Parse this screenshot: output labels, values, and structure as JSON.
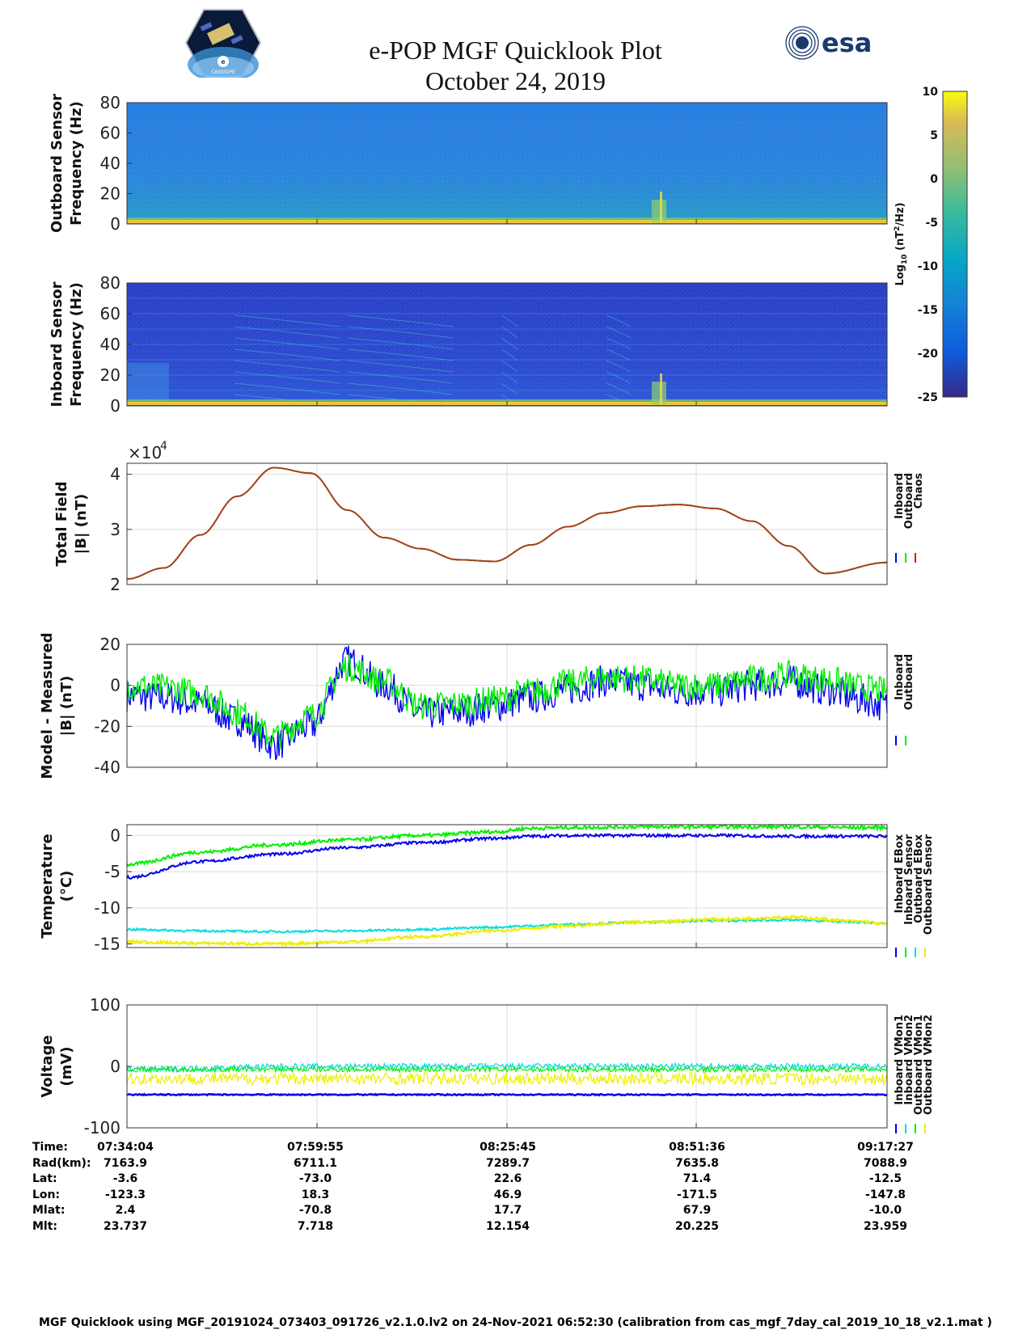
{
  "header": {
    "title": "e-POP MGF Quicklook Plot",
    "date": "October 24, 2019",
    "left_logo_icon": "cassiope-mission-patch-icon",
    "left_logo_text": "CASSIOPE",
    "right_logo_icon": "esa-logo-icon",
    "right_logo_text": "esa"
  },
  "colorbar": {
    "label": "Log10 (nT²/Hz)",
    "label_main": "Log",
    "label_sub": "10",
    "label_unit": " (nT",
    "label_sup": "2",
    "label_end": "/Hz)",
    "ticks": [
      "10",
      "5",
      "0",
      "-5",
      "-10",
      "-15",
      "-20",
      "-25"
    ]
  },
  "chart_data": [
    {
      "id": "outboard-spectrogram",
      "type": "heatmap",
      "ylabel_line1": "Outboard Sensor",
      "ylabel_line2": "Frequency (Hz)",
      "ylim": [
        0,
        80
      ],
      "yticks": [
        "80",
        "60",
        "40",
        "20",
        "0"
      ],
      "colormap": "parula",
      "clim": [
        -25,
        10
      ],
      "description_of_features": "mostly uniform ~-13 log10 level; strong low-frequency line near 0-2 Hz; burst near 08:51"
    },
    {
      "id": "inboard-spectrogram",
      "type": "heatmap",
      "ylabel_line1": "Inboard Sensor",
      "ylabel_line2": "Frequency (Hz)",
      "ylim": [
        0,
        80
      ],
      "yticks": [
        "80",
        "60",
        "40",
        "20",
        "0"
      ],
      "colormap": "parula",
      "clim": [
        -25,
        10
      ]
    },
    {
      "id": "total-field",
      "type": "line",
      "ylabel_line1": "Total Field",
      "ylabel_line2": "|B| (nT)",
      "exponent_label": "×10",
      "exponent_power": "4",
      "ylim": [
        2,
        4.2
      ],
      "yticks": [
        "4",
        "3",
        "2"
      ],
      "x_minutes": [
        0,
        5,
        10,
        15,
        20,
        25,
        30,
        35,
        40,
        45,
        50,
        55,
        60,
        65,
        70,
        75,
        80,
        85,
        90,
        95,
        103.4
      ],
      "series": [
        {
          "name": "Inboard",
          "color": "#0000ff",
          "values": [
            2.1,
            2.3,
            2.9,
            3.6,
            4.12,
            4.02,
            3.35,
            2.85,
            2.65,
            2.45,
            2.42,
            2.72,
            3.05,
            3.3,
            3.42,
            3.45,
            3.38,
            3.15,
            2.7,
            2.2,
            2.4
          ]
        },
        {
          "name": "Outboard",
          "color": "#00ee00",
          "values": [
            2.1,
            2.3,
            2.9,
            3.6,
            4.12,
            4.02,
            3.35,
            2.85,
            2.65,
            2.45,
            2.42,
            2.72,
            3.05,
            3.3,
            3.42,
            3.45,
            3.38,
            3.15,
            2.7,
            2.2,
            2.4
          ]
        },
        {
          "name": "Chaos",
          "color": "#ee0000",
          "values": [
            2.1,
            2.3,
            2.9,
            3.6,
            4.12,
            4.02,
            3.35,
            2.85,
            2.65,
            2.45,
            2.42,
            2.72,
            3.05,
            3.3,
            3.42,
            3.45,
            3.38,
            3.15,
            2.7,
            2.2,
            2.4
          ]
        }
      ],
      "legend": [
        "Inboard",
        "Outboard",
        "Chaos"
      ]
    },
    {
      "id": "model-minus-measured",
      "type": "line",
      "ylabel_line1": "Model - Measured",
      "ylabel_line2": "|B| (nT)",
      "ylim": [
        -40,
        20
      ],
      "yticks": [
        "20",
        "0",
        "-20",
        "-40"
      ],
      "x_minutes": [
        0,
        5,
        10,
        15,
        20,
        25,
        30,
        35,
        40,
        45,
        50,
        55,
        60,
        65,
        70,
        75,
        80,
        85,
        90,
        95,
        100,
        103.4
      ],
      "series": [
        {
          "name": "Inboard",
          "color": "#0000ee",
          "values": [
            -5,
            -6,
            -9,
            -17,
            -29,
            -20,
            12,
            0,
            -14,
            -13,
            -10,
            -6,
            -2,
            2,
            0,
            -3,
            -3,
            0,
            2,
            -2,
            -7,
            -10
          ]
        },
        {
          "name": "Outboard",
          "color": "#00ee00",
          "values": [
            0,
            -1,
            -4,
            -13,
            -25,
            -15,
            9,
            2,
            -10,
            -9,
            -7,
            -3,
            1,
            4,
            3,
            0,
            0,
            3,
            5,
            3,
            -1,
            -3
          ]
        }
      ],
      "legend": [
        "Inboard",
        "Outboard"
      ]
    },
    {
      "id": "temperature",
      "type": "line",
      "ylabel_line1": "Temperature",
      "ylabel_line2": "(°C)",
      "ylim": [
        -15.5,
        1.5
      ],
      "yticks": [
        "0",
        "-5",
        "-10",
        "-15"
      ],
      "x_minutes": [
        0,
        10,
        20,
        30,
        40,
        50,
        55,
        60,
        70,
        80,
        90,
        100,
        103.4
      ],
      "series": [
        {
          "name": "Inboard EBox",
          "color": "#0000ee",
          "values": [
            -5.8,
            -3.6,
            -2.6,
            -1.7,
            -1.0,
            -0.4,
            -0.1,
            0.0,
            0.0,
            0.0,
            -0.1,
            -0.1,
            -0.1
          ]
        },
        {
          "name": "Inboard Sensor",
          "color": "#00ee00",
          "values": [
            -4.0,
            -2.3,
            -1.3,
            -0.6,
            0.0,
            0.5,
            1.0,
            1.1,
            1.2,
            1.2,
            1.2,
            1.1,
            1.1
          ]
        },
        {
          "name": "Outboard EBox",
          "color": "#00dddd",
          "values": [
            -13.0,
            -13.2,
            -13.3,
            -13.2,
            -13.0,
            -12.7,
            -12.5,
            -12.3,
            -12.0,
            -11.8,
            -11.7,
            -12.0,
            -12.2
          ]
        },
        {
          "name": "Outboard Sensor",
          "color": "#eeee00",
          "values": [
            -14.7,
            -14.9,
            -15.0,
            -14.7,
            -14.0,
            -13.2,
            -12.8,
            -12.5,
            -12.0,
            -11.6,
            -11.3,
            -11.9,
            -12.3
          ]
        }
      ],
      "legend": [
        "Inboard EBox",
        "Inboard Sensor",
        "Outboard EBox",
        "Outboard Sensor"
      ]
    },
    {
      "id": "voltage",
      "type": "line",
      "ylabel_line1": "Voltage",
      "ylabel_line2": "(mV)",
      "ylim": [
        -100,
        100
      ],
      "yticks": [
        "100",
        "0",
        "-100"
      ],
      "x_minutes": [
        0,
        25,
        50,
        75,
        103.4
      ],
      "series": [
        {
          "name": "Inboard VMon1",
          "color": "#0000ee",
          "values": [
            -46,
            -46,
            -46,
            -46,
            -46
          ]
        },
        {
          "name": "Inboard VMon2",
          "color": "#00dddd",
          "values": [
            -5,
            0,
            0,
            0,
            0
          ]
        },
        {
          "name": "Outboard VMon1",
          "color": "#00ee00",
          "values": [
            -5,
            -5,
            -5,
            -5,
            -5
          ]
        },
        {
          "name": "Outboard VMon2",
          "color": "#eeee00",
          "values": [
            -20,
            -20,
            -20,
            -20,
            -20
          ]
        }
      ],
      "legend": [
        "Inboard VMon1",
        "Inboard VMon2",
        "Outboard VMon1",
        "Outboard VMon2"
      ]
    }
  ],
  "ephemeris": {
    "labels": [
      "Time:",
      "Rad(km):",
      "Lat:",
      "Lon:",
      "Mlat:",
      "Mlt:"
    ],
    "columns": [
      [
        "07:34:04",
        "7163.9",
        "-3.6",
        "-123.3",
        "2.4",
        "23.737"
      ],
      [
        "07:59:55",
        "6711.1",
        "-73.0",
        "18.3",
        "-70.8",
        "7.718"
      ],
      [
        "08:25:45",
        "7289.7",
        "22.6",
        "46.9",
        "17.7",
        "12.154"
      ],
      [
        "08:51:36",
        "7635.8",
        "71.4",
        "-171.5",
        "67.9",
        "20.225"
      ],
      [
        "09:17:27",
        "7088.9",
        "-12.5",
        "-147.8",
        "-10.0",
        "23.959"
      ]
    ]
  },
  "footer": "MGF Quicklook using MGF_20191024_073403_091726_v2.1.0.lv2 on 24-Nov-2021 06:52:30 (calibration from cas_mgf_7day_cal_2019_10_18_v2.1.mat )"
}
